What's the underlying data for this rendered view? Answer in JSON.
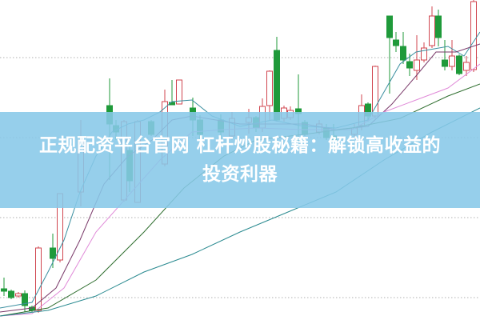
{
  "banner": {
    "title_line1": "正规配资平台官网 杠杆炒股秘籍：解锁高收益的",
    "title_line2": "投资利器"
  },
  "colors": {
    "up_candle": "#d0454f",
    "down_candle": "#1f9a3a",
    "banner": "#87c8e8",
    "gridline": "#b0b0b0",
    "ma_lines": [
      "#3b8fa0",
      "#7a3a6a",
      "#e08ad8",
      "#2f6e2f",
      "#2a8a90"
    ]
  },
  "chart": {
    "type": "candlestick",
    "gridlines": "dotted horizontal",
    "axes": "none"
  }
}
